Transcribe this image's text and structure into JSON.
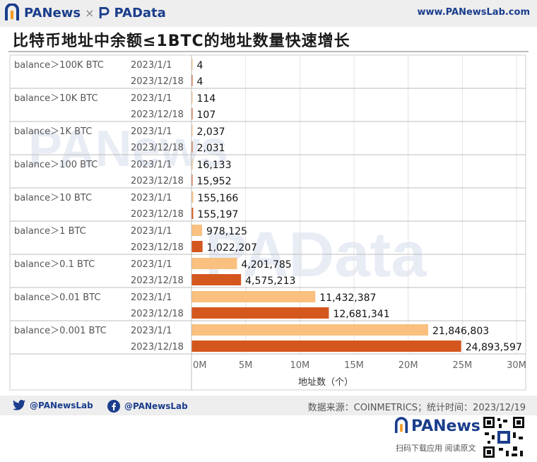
{
  "header": {
    "brand_left": "PANews",
    "brand_sep": "×",
    "brand_right": "PAData",
    "site": "www.PANewsLab.com"
  },
  "title": "比特币地址中余额≤1BTC的地址数量快速增长",
  "watermarks": [
    "PANews",
    "PAData"
  ],
  "chart_data": {
    "type": "bar",
    "orientation": "horizontal",
    "groups": [
      {
        "label": "balance＞100K BTC",
        "rows": [
          {
            "date": "2023/1/1",
            "value": 4,
            "value_label": "4"
          },
          {
            "date": "2023/12/18",
            "value": 4,
            "value_label": "4"
          }
        ]
      },
      {
        "label": "balance＞10K BTC",
        "rows": [
          {
            "date": "2023/1/1",
            "value": 114,
            "value_label": "114"
          },
          {
            "date": "2023/12/18",
            "value": 107,
            "value_label": "107"
          }
        ]
      },
      {
        "label": "balance＞1K BTC",
        "rows": [
          {
            "date": "2023/1/1",
            "value": 2037,
            "value_label": "2,037"
          },
          {
            "date": "2023/12/18",
            "value": 2031,
            "value_label": "2,031"
          }
        ]
      },
      {
        "label": "balance＞100 BTC",
        "rows": [
          {
            "date": "2023/1/1",
            "value": 16133,
            "value_label": "16,133"
          },
          {
            "date": "2023/12/18",
            "value": 15952,
            "value_label": "15,952"
          }
        ]
      },
      {
        "label": "balance＞10 BTC",
        "rows": [
          {
            "date": "2023/1/1",
            "value": 155166,
            "value_label": "155,166"
          },
          {
            "date": "2023/12/18",
            "value": 155197,
            "value_label": "155,197"
          }
        ]
      },
      {
        "label": "balance＞1 BTC",
        "rows": [
          {
            "date": "2023/1/1",
            "value": 978125,
            "value_label": "978,125"
          },
          {
            "date": "2023/12/18",
            "value": 1022207,
            "value_label": "1,022,207"
          }
        ]
      },
      {
        "label": "balance＞0.1 BTC",
        "rows": [
          {
            "date": "2023/1/1",
            "value": 4201785,
            "value_label": "4,201,785"
          },
          {
            "date": "2023/12/18",
            "value": 4575213,
            "value_label": "4,575,213"
          }
        ]
      },
      {
        "label": "balance＞0.01 BTC",
        "rows": [
          {
            "date": "2023/1/1",
            "value": 11432387,
            "value_label": "11,432,387"
          },
          {
            "date": "2023/12/18",
            "value": 12681341,
            "value_label": "12,681,341"
          }
        ]
      },
      {
        "label": "balance＞0.001 BTC",
        "rows": [
          {
            "date": "2023/1/1",
            "value": 21846803,
            "value_label": "21,846,803"
          },
          {
            "date": "2023/12/18",
            "value": 24893597,
            "value_label": "24,893,597"
          }
        ]
      }
    ],
    "xlim": [
      0,
      30000000
    ],
    "xticks": [
      0,
      5000000,
      10000000,
      15000000,
      20000000,
      25000000,
      30000000
    ],
    "xtick_labels": [
      "0M",
      "5M",
      "10M",
      "15M",
      "20M",
      "25M",
      "30M"
    ],
    "xlabel": "地址数（个）",
    "colors": {
      "2023/1/1": "#f9c07f",
      "2023/12/18": "#d4571e"
    },
    "grid": true
  },
  "footer": {
    "twitter": "@PANewsLab",
    "facebook": "@PANewsLab",
    "source": "数据来源：COINMETRICS；统计时间：2023/12/19",
    "logo": "PANews",
    "scan_text": "扫码下载应用  阅读原文"
  }
}
